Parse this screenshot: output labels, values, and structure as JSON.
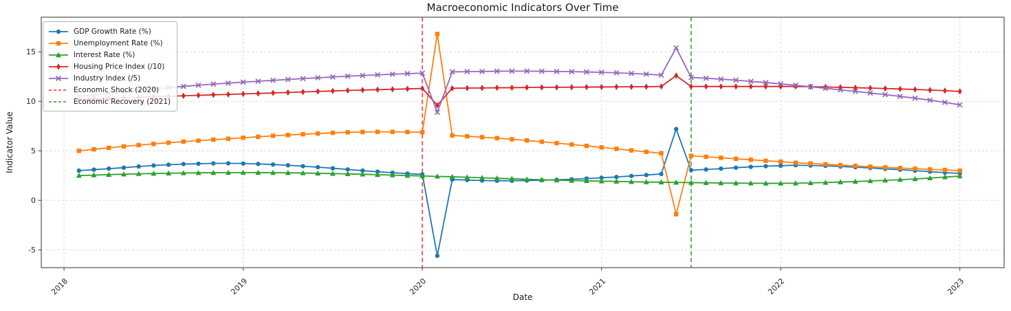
{
  "title": "Macroeconomic Indicators Over Time",
  "axes": {
    "xlabel": "Date",
    "ylabel": "Indicator Value"
  },
  "chart_data": {
    "type": "line",
    "title": "Macroeconomic Indicators Over Time",
    "xlabel": "Date",
    "ylabel": "Indicator Value",
    "grid": true,
    "legend_position": "upper left",
    "x_tick_labels": [
      "2018",
      "2019",
      "2020",
      "2021",
      "2022",
      "2023"
    ],
    "x_tick_years": [
      2018,
      2019,
      2020,
      2021,
      2022,
      2023
    ],
    "y_ticks": [
      -5,
      0,
      5,
      10,
      15
    ],
    "ylim": [
      -6.8,
      18.5
    ],
    "xlim_years_from_2018": [
      -0.127,
      5.247
    ],
    "x_months": [
      "2018-01",
      "2018-02",
      "2018-03",
      "2018-04",
      "2018-05",
      "2018-06",
      "2018-07",
      "2018-08",
      "2018-09",
      "2018-10",
      "2018-11",
      "2018-12",
      "2019-01",
      "2019-02",
      "2019-03",
      "2019-04",
      "2019-05",
      "2019-06",
      "2019-07",
      "2019-08",
      "2019-09",
      "2019-10",
      "2019-11",
      "2019-12",
      "2020-01",
      "2020-02",
      "2020-03",
      "2020-04",
      "2020-05",
      "2020-06",
      "2020-07",
      "2020-08",
      "2020-09",
      "2020-10",
      "2020-11",
      "2020-12",
      "2021-01",
      "2021-02",
      "2021-03",
      "2021-04",
      "2021-05",
      "2021-06",
      "2021-07",
      "2021-08",
      "2021-09",
      "2021-10",
      "2021-11",
      "2021-12",
      "2022-01",
      "2022-02",
      "2022-03",
      "2022-04",
      "2022-05",
      "2022-06",
      "2022-07",
      "2022-08",
      "2022-09",
      "2022-10",
      "2022-11",
      "2022-12"
    ],
    "series": [
      {
        "name": "GDP Growth Rate (%)",
        "color": "#1f77b4",
        "marker": "circle",
        "values": [
          3.0,
          3.1,
          3.2,
          3.3,
          3.42,
          3.52,
          3.6,
          3.66,
          3.7,
          3.73,
          3.74,
          3.72,
          3.68,
          3.62,
          3.54,
          3.45,
          3.35,
          3.24,
          3.12,
          3.0,
          2.89,
          2.79,
          2.7,
          2.63,
          -5.6,
          2.1,
          2.05,
          2.0,
          1.98,
          1.98,
          2.0,
          2.03,
          2.08,
          2.13,
          2.2,
          2.28,
          2.36,
          2.46,
          2.56,
          2.66,
          7.2,
          3.05,
          3.12,
          3.2,
          3.3,
          3.38,
          3.45,
          3.5,
          3.55,
          3.52,
          3.48,
          3.42,
          3.35,
          3.27,
          3.18,
          3.1,
          3.0,
          2.9,
          2.8,
          2.72
        ]
      },
      {
        "name": "Unemployment Rate (%)",
        "color": "#ff7f0e",
        "marker": "square",
        "values": [
          5.0,
          5.15,
          5.3,
          5.45,
          5.58,
          5.7,
          5.82,
          5.93,
          6.03,
          6.13,
          6.22,
          6.32,
          6.42,
          6.52,
          6.6,
          6.68,
          6.75,
          6.82,
          6.87,
          6.9,
          6.92,
          6.92,
          6.9,
          6.88,
          16.8,
          6.55,
          6.47,
          6.38,
          6.28,
          6.17,
          6.05,
          5.92,
          5.78,
          5.64,
          5.5,
          5.35,
          5.2,
          5.05,
          4.9,
          4.75,
          -1.4,
          4.5,
          4.4,
          4.3,
          4.2,
          4.1,
          4.0,
          3.9,
          3.8,
          3.72,
          3.64,
          3.56,
          3.48,
          3.4,
          3.33,
          3.26,
          3.2,
          3.13,
          3.07,
          3.0
        ]
      },
      {
        "name": "Interest Rate (%)",
        "color": "#2ca02c",
        "marker": "triangle",
        "values": [
          2.5,
          2.55,
          2.6,
          2.64,
          2.68,
          2.71,
          2.74,
          2.76,
          2.78,
          2.79,
          2.8,
          2.8,
          2.8,
          2.79,
          2.78,
          2.76,
          2.73,
          2.7,
          2.67,
          2.63,
          2.59,
          2.55,
          2.5,
          2.46,
          2.42,
          2.38,
          2.33,
          2.28,
          2.23,
          2.18,
          2.13,
          2.08,
          2.04,
          2.0,
          1.97,
          1.94,
          1.91,
          1.88,
          1.85,
          1.83,
          1.81,
          1.79,
          1.77,
          1.75,
          1.74,
          1.73,
          1.72,
          1.72,
          1.73,
          1.76,
          1.8,
          1.85,
          1.9,
          1.96,
          2.02,
          2.09,
          2.16,
          2.25,
          2.35,
          2.45
        ]
      },
      {
        "name": "Housing Price Index (/10)",
        "color": "#d62728",
        "marker": "diamond",
        "values": [
          10.2,
          10.25,
          10.3,
          10.36,
          10.41,
          10.46,
          10.51,
          10.56,
          10.61,
          10.66,
          10.7,
          10.75,
          10.8,
          10.85,
          10.9,
          10.95,
          11.0,
          11.05,
          11.1,
          11.14,
          11.18,
          11.22,
          11.26,
          11.3,
          9.6,
          11.32,
          11.34,
          11.35,
          11.37,
          11.38,
          11.4,
          11.41,
          11.42,
          11.43,
          11.44,
          11.45,
          11.46,
          11.47,
          11.48,
          11.5,
          12.6,
          11.5,
          11.5,
          11.5,
          11.5,
          11.5,
          11.5,
          11.5,
          11.5,
          11.48,
          11.45,
          11.42,
          11.38,
          11.34,
          11.3,
          11.25,
          11.2,
          11.14,
          11.08,
          11.0
        ]
      },
      {
        "name": "Industry Index (/5)",
        "color": "#9467bd",
        "marker": "x",
        "values": [
          10.5,
          10.66,
          10.82,
          10.97,
          11.12,
          11.26,
          11.39,
          11.51,
          11.63,
          11.74,
          11.84,
          11.94,
          12.03,
          12.12,
          12.21,
          12.3,
          12.38,
          12.46,
          12.54,
          12.61,
          12.68,
          12.74,
          12.8,
          12.85,
          8.9,
          12.98,
          13.0,
          13.02,
          13.04,
          13.05,
          13.05,
          13.04,
          13.02,
          13.0,
          12.97,
          12.93,
          12.88,
          12.82,
          12.75,
          12.65,
          15.4,
          12.42,
          12.33,
          12.24,
          12.14,
          12.02,
          11.9,
          11.76,
          11.62,
          11.47,
          11.32,
          11.16,
          11.0,
          10.84,
          10.68,
          10.5,
          10.32,
          10.12,
          9.9,
          9.65
        ]
      }
    ],
    "events": [
      {
        "name": "Economic Shock (2020)",
        "color": "#ff4c4c",
        "year_position": 2.0
      },
      {
        "name": "Economic Recovery (2021)",
        "color": "#4da64d",
        "year_position": 3.5
      }
    ],
    "colors": {
      "grid": "#d4d4d4",
      "spine": "#424242",
      "background": "#ffffff"
    }
  }
}
